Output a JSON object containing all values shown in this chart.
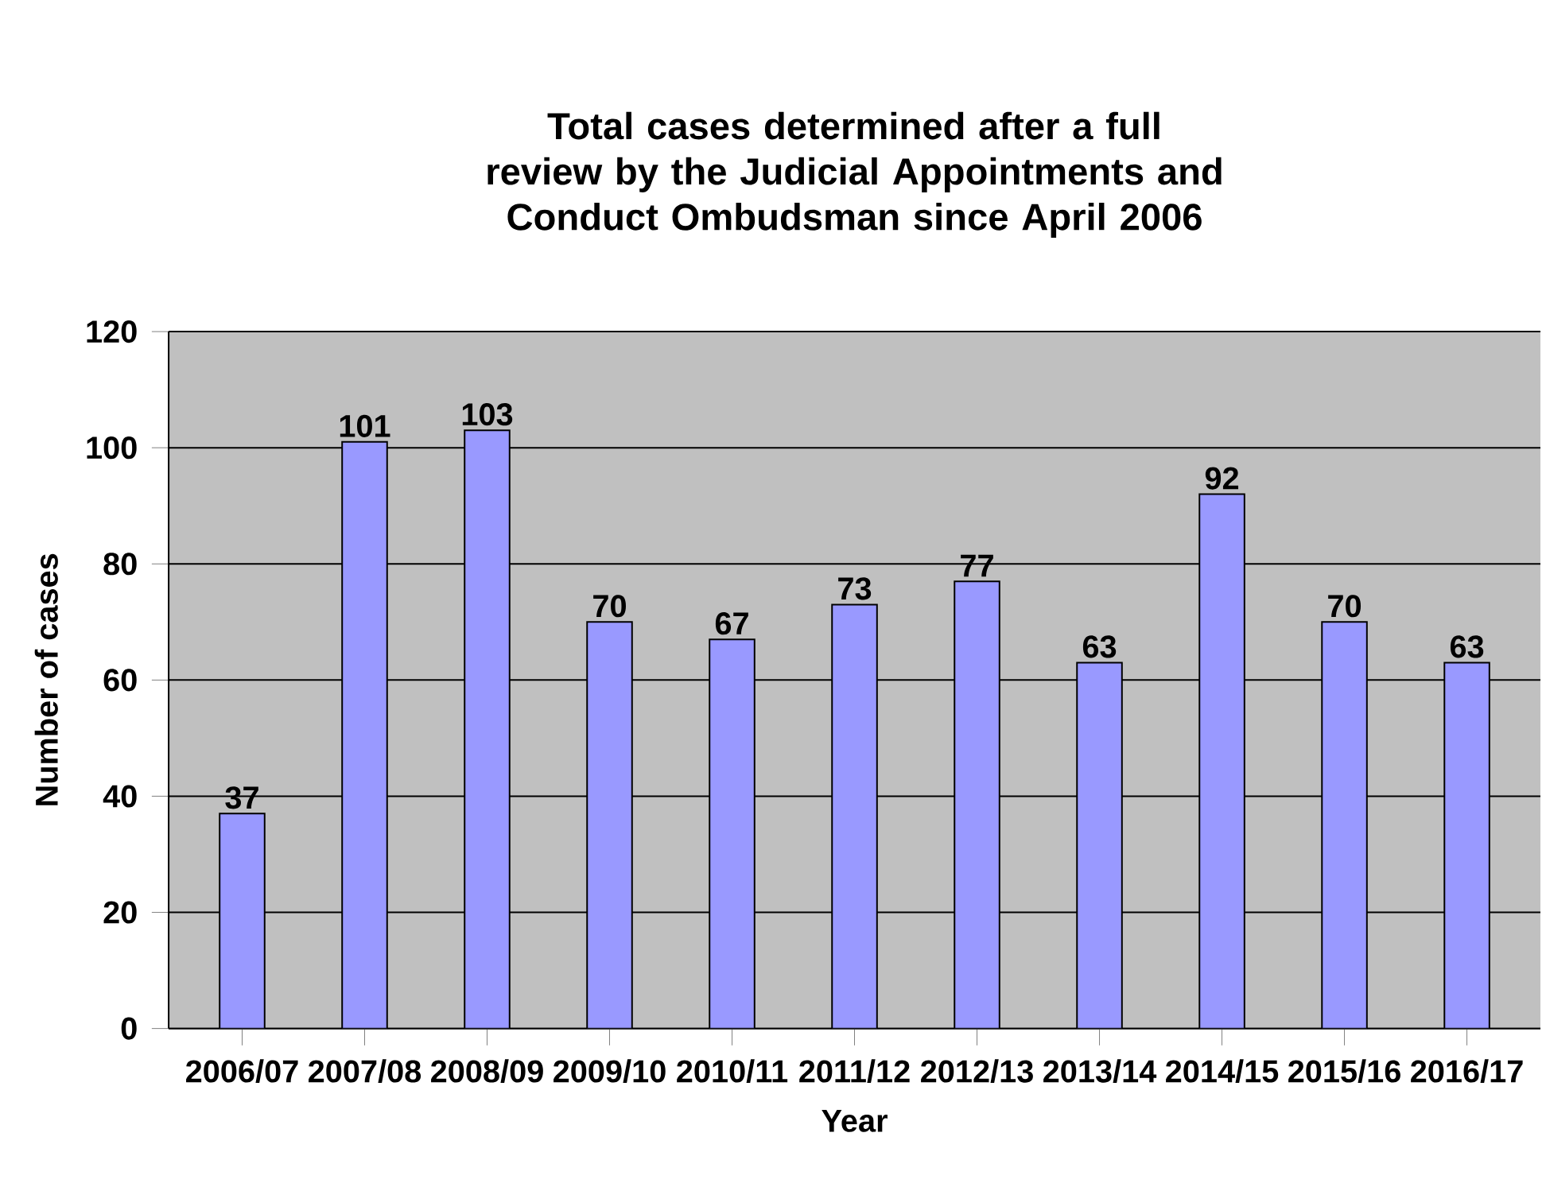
{
  "chart_data": {
    "type": "bar",
    "title": "Total cases determined after a full review by the Judicial Appointments and Conduct Ombudsman since April 2006",
    "xlabel": "Year",
    "ylabel": "Number of cases",
    "categories": [
      "2006/07",
      "2007/08",
      "2008/09",
      "2009/10",
      "2010/11",
      "2011/12",
      "2012/13",
      "2013/14",
      "2014/15",
      "2015/16",
      "2016/17"
    ],
    "values": [
      37,
      101,
      103,
      70,
      67,
      73,
      77,
      63,
      92,
      70,
      63
    ],
    "color": "#9999ff",
    "ylim": [
      0,
      120
    ],
    "yticks": [
      0,
      20,
      40,
      60,
      80,
      100,
      120
    ],
    "grid": "y",
    "data_labels": true
  }
}
